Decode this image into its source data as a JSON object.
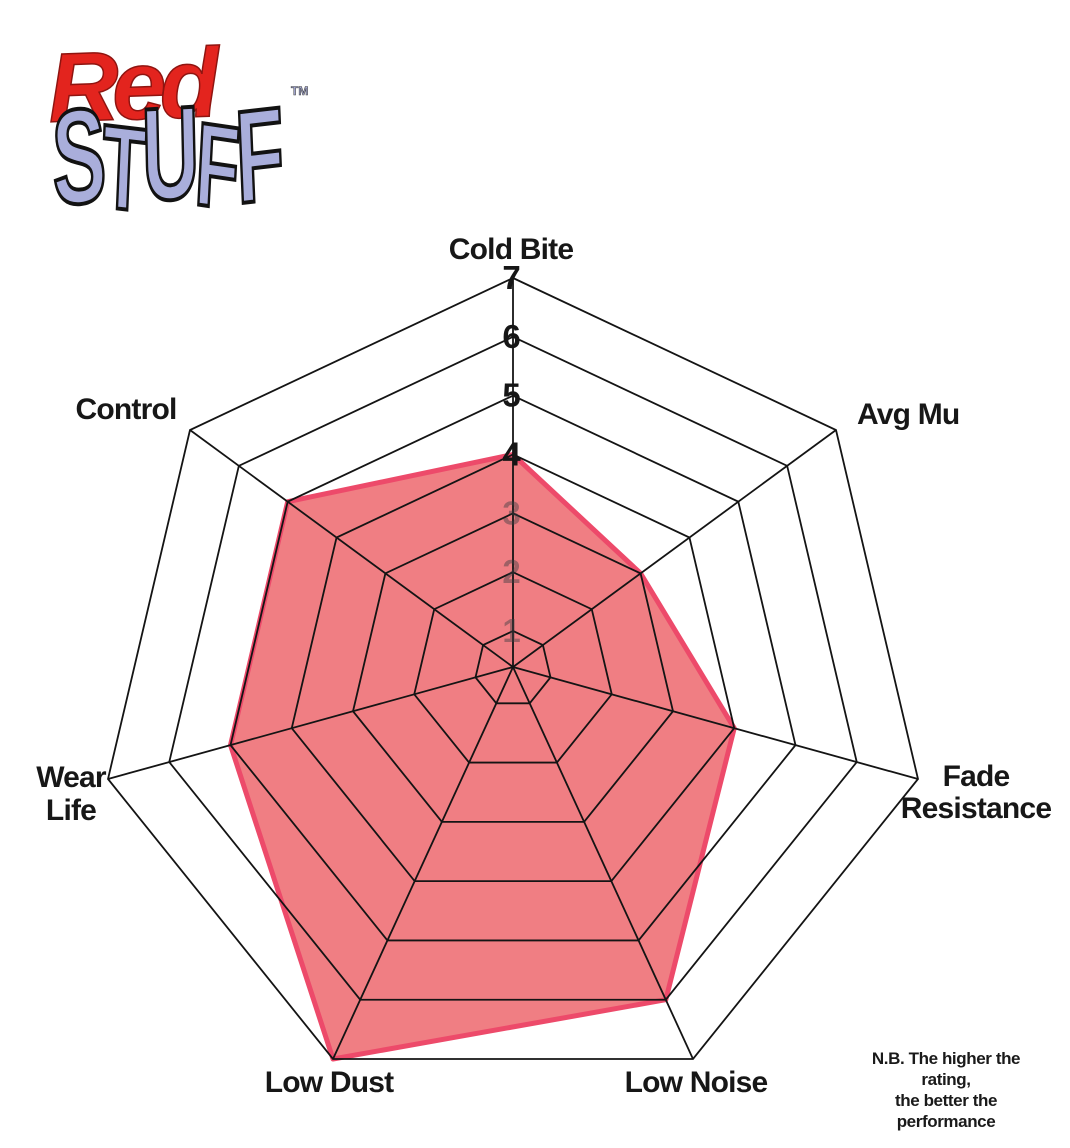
{
  "brand": {
    "word_top": "Red",
    "word_bottom": "STUFF",
    "trademark": "TM",
    "red_color": "#e3241e",
    "lavender_color": "#a9aedb"
  },
  "note": {
    "line1": "N.B. The higher the rating,",
    "line2": "the better the performance"
  },
  "chart_data": {
    "type": "radar",
    "categories": [
      "Cold Bite",
      "Avg Mu",
      "Fade Resistance",
      "Low Noise",
      "Low Dust",
      "Wear Life",
      "Control"
    ],
    "axis_label_lines": [
      [
        "Cold Bite"
      ],
      [
        "Avg Mu"
      ],
      [
        "Fade",
        "Resistance"
      ],
      [
        "Low Noise"
      ],
      [
        "Low Dust"
      ],
      [
        "Wear",
        "Life"
      ],
      [
        "Control"
      ]
    ],
    "series": [
      {
        "values": [
          4,
          3,
          4,
          6,
          7,
          5,
          5
        ]
      }
    ],
    "scale": {
      "min": 1,
      "max": 7,
      "ticks": [
        1,
        2,
        3,
        4,
        5,
        6,
        7
      ]
    },
    "axis_count": 7,
    "grid": true,
    "legend": false,
    "colors": {
      "fill": "#ec5a60",
      "fill_opacity": 0.78,
      "outline": "#ed4a6a",
      "grid_line": "#141414",
      "tick_text": "#161616",
      "label_text": "#171717"
    }
  }
}
